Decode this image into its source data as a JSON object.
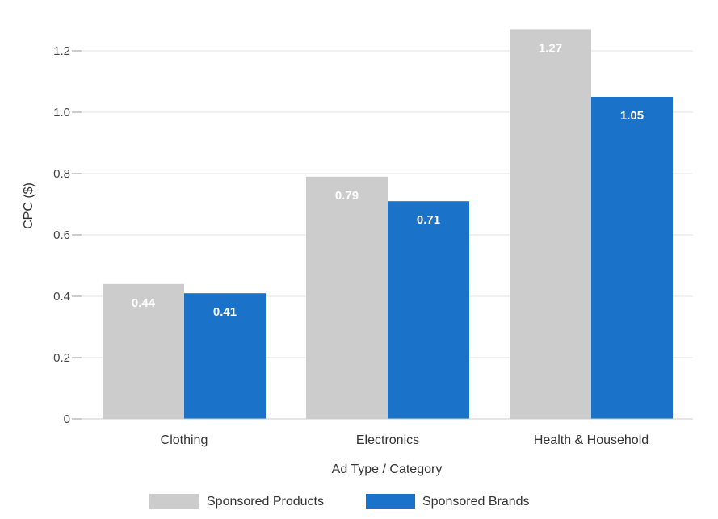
{
  "chart_data": {
    "type": "bar",
    "title": "",
    "xlabel": "Ad Type / Category",
    "ylabel": "CPC ($)",
    "categories": [
      "Clothing",
      "Electronics",
      "Health & Household"
    ],
    "series": [
      {
        "name": "Sponsored Products",
        "values": [
          0.44,
          0.79,
          1.27
        ],
        "color": "#cccccc",
        "labels": [
          "0.44",
          "0.79",
          "1.27"
        ]
      },
      {
        "name": "Sponsored Brands",
        "values": [
          0.41,
          0.71,
          1.05
        ],
        "color": "#1a73c8",
        "labels": [
          "0.41",
          "0.71",
          "1.05"
        ]
      }
    ],
    "yticks": [
      {
        "value": 0,
        "label": "0"
      },
      {
        "value": 0.2,
        "label": "0.2"
      },
      {
        "value": 0.4,
        "label": "0.4"
      },
      {
        "value": 0.6,
        "label": "0.6"
      },
      {
        "value": 0.8,
        "label": "0.8"
      },
      {
        "value": 1.0,
        "label": "1.0"
      },
      {
        "value": 1.2,
        "label": "1.2"
      }
    ],
    "ylim": [
      0,
      1.3
    ],
    "grid": true,
    "legend_position": "bottom-center"
  }
}
